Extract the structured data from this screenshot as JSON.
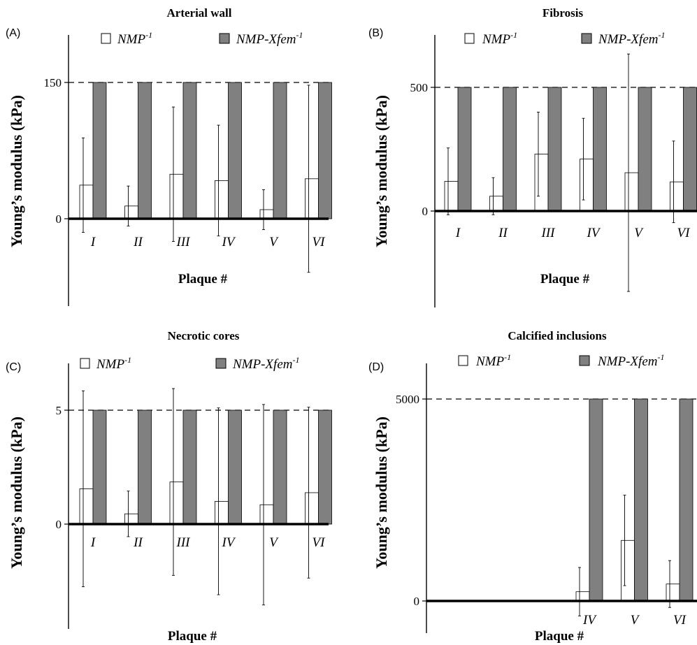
{
  "colors": {
    "ref_fill": "#808080",
    "est_fill": "#ffffff",
    "stroke": "#000000"
  },
  "chart_data": [
    {
      "type": "bar",
      "panel": "(A)",
      "title": "Arterial wall",
      "xlabel": "Plaque #",
      "ylabel": "Young’s modulus (kPa)",
      "categories": [
        "I",
        "II",
        "III",
        "IV",
        "V",
        "VI"
      ],
      "yticks": [
        {
          "value": 0,
          "label": "0"
        },
        {
          "value": 150,
          "label": "150"
        }
      ],
      "reference": 150,
      "ylim": [
        -95,
        205
      ],
      "legend": "top",
      "series": [
        {
          "name": "NMP",
          "sup": "-1",
          "style": "open",
          "values": [
            37,
            14,
            49,
            42,
            10,
            44
          ],
          "errors": [
            52,
            22,
            74,
            61,
            22,
            103
          ]
        },
        {
          "name": "NMP-Xfem",
          "sup": "-1",
          "style": "filled",
          "values": [
            150,
            150,
            150,
            150,
            150,
            150
          ]
        }
      ]
    },
    {
      "type": "bar",
      "panel": "(B)",
      "title": "Fibrosis",
      "xlabel": "Plaque #",
      "ylabel": "Young’s modulus (kPa)",
      "categories": [
        "I",
        "II",
        "III",
        "IV",
        "V",
        "VI"
      ],
      "yticks": [
        {
          "value": 0,
          "label": "0"
        },
        {
          "value": 500,
          "label": "500"
        }
      ],
      "reference": 500,
      "ylim": [
        -380,
        700
      ],
      "legend": "top",
      "series": [
        {
          "name": "NMP",
          "sup": "-1",
          "style": "open",
          "values": [
            120,
            60,
            230,
            210,
            155,
            118
          ],
          "errors": [
            135,
            75,
            170,
            165,
            480,
            165
          ]
        },
        {
          "name": "NMP-Xfem",
          "sup": "-1",
          "style": "filled",
          "values": [
            500,
            500,
            500,
            500,
            500,
            500
          ]
        }
      ]
    },
    {
      "type": "bar",
      "panel": "(C)",
      "title": "Necrotic cores",
      "xlabel": "Plaque #",
      "ylabel": "Young’s modulus (kPa)",
      "categories": [
        "I",
        "II",
        "III",
        "IV",
        "V",
        "VI"
      ],
      "yticks": [
        {
          "value": 0,
          "label": "0"
        },
        {
          "value": 5,
          "label": "5"
        }
      ],
      "reference": 5,
      "ylim": [
        -4.5,
        7.5
      ],
      "legend": "top",
      "series": [
        {
          "name": "NMP",
          "sup": "-1",
          "style": "open",
          "values": [
            1.55,
            0.45,
            1.85,
            1.0,
            0.85,
            1.38
          ],
          "errors": [
            4.3,
            1.0,
            4.1,
            4.1,
            4.4,
            3.75
          ]
        },
        {
          "name": "NMP-Xfem",
          "sup": "-1",
          "style": "filled",
          "values": [
            5,
            5,
            5,
            5,
            5,
            5
          ]
        }
      ]
    },
    {
      "type": "bar",
      "panel": "(D)",
      "title": "Calcified inclusions",
      "xlabel": "Plaque #",
      "ylabel": "Young’s modulus (kPa)",
      "categories": [
        "IV",
        "V",
        "VI"
      ],
      "yticks": [
        {
          "value": 0,
          "label": "0"
        },
        {
          "value": 5000,
          "label": "5000"
        }
      ],
      "reference": 5000,
      "ylim": [
        -800,
        5700
      ],
      "legend": "top",
      "series": [
        {
          "name": "NMP",
          "sup": "-1",
          "style": "open",
          "values": [
            230,
            1500,
            420
          ],
          "errors": [
            600,
            1120,
            580
          ]
        },
        {
          "name": "NMP-Xfem",
          "sup": "-1",
          "style": "filled",
          "values": [
            5000,
            5000,
            5000
          ]
        }
      ]
    }
  ]
}
